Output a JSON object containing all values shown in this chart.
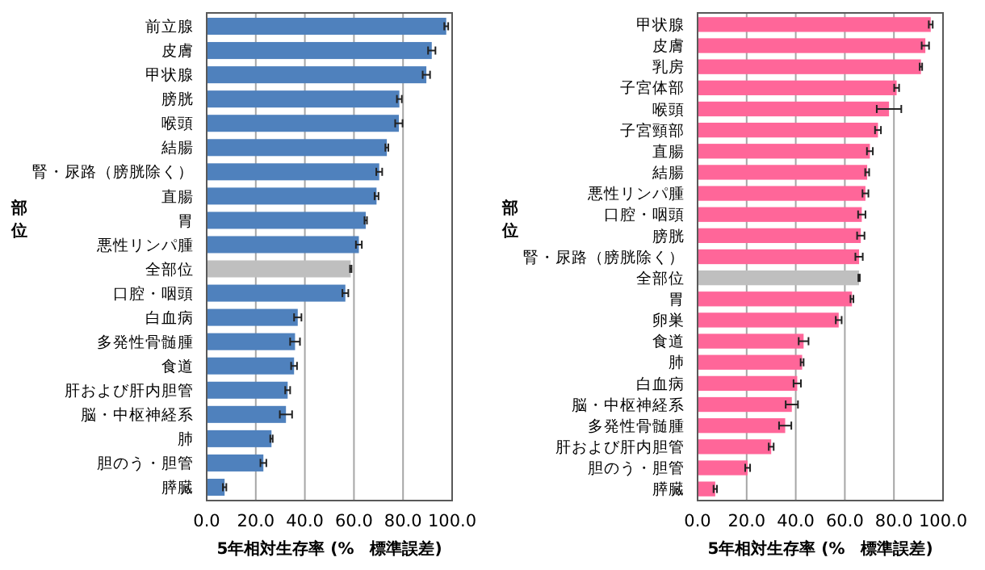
{
  "chart_data": [
    {
      "type": "bar",
      "orientation": "horizontal",
      "xlabel": "5年相対生存率 (%　標準誤差)",
      "ylabel": "部位",
      "categories": [
        "前立腺",
        "皮膚",
        "甲状腺",
        "膀胱",
        "喉頭",
        "結腸",
        "腎・尿路（膀胱除く）",
        "直腸",
        "胃",
        "悪性リンパ腫",
        "全部位",
        "口腔・咽頭",
        "白血病",
        "多発性骨髄腫",
        "食道",
        "肝および肝内胆管",
        "脳・中枢神経系",
        "肺",
        "胆のう・胆管",
        "膵臓"
      ],
      "values": [
        97.6,
        91.7,
        89.5,
        78.5,
        78.3,
        73.4,
        70.3,
        69.2,
        64.8,
        62.0,
        58.7,
        56.5,
        37.1,
        36.0,
        35.6,
        33.0,
        32.3,
        26.4,
        23.1,
        7.3
      ],
      "errors": [
        0.8,
        1.5,
        1.5,
        1,
        1.5,
        0.6,
        1.2,
        0.8,
        0.5,
        1.2,
        0.3,
        1.2,
        1.5,
        2,
        1.2,
        1,
        2.5,
        0.5,
        1.2,
        0.7
      ],
      "colors": [
        "#4f81bd",
        "#4f81bd",
        "#4f81bd",
        "#4f81bd",
        "#4f81bd",
        "#4f81bd",
        "#4f81bd",
        "#4f81bd",
        "#4f81bd",
        "#4f81bd",
        "#bfbfbf",
        "#4f81bd",
        "#4f81bd",
        "#4f81bd",
        "#4f81bd",
        "#4f81bd",
        "#4f81bd",
        "#4f81bd",
        "#4f81bd",
        "#4f81bd"
      ],
      "xlim": [
        0,
        100
      ],
      "xticks": [
        {
          "value": 0,
          "label": "0.0"
        },
        {
          "value": 20,
          "label": "20.0"
        },
        {
          "value": 40,
          "label": "40.0"
        },
        {
          "value": 60,
          "label": "60.0"
        },
        {
          "value": 80,
          "label": "80.0"
        },
        {
          "value": 100,
          "label": "100.0"
        }
      ],
      "grid": "x"
    },
    {
      "type": "bar",
      "orientation": "horizontal",
      "xlabel": "5年相対生存率 (%　標準誤差)",
      "ylabel": "部位",
      "categories": [
        "甲状腺",
        "皮膚",
        "乳房",
        "子宮体部",
        "喉頭",
        "子宮頸部",
        "直腸",
        "結腸",
        "悪性リンパ腫",
        "口腔・咽頭",
        "膀胱",
        "腎・尿路（膀胱除く）",
        "全部位",
        "胃",
        "卵巣",
        "食道",
        "肺",
        "白血病",
        "脳・中枢神経系",
        "多発性骨髄腫",
        "肝および肝内胆管",
        "胆のう・胆管",
        "膵臓"
      ],
      "values": [
        95.0,
        92.8,
        91.0,
        81.1,
        78.0,
        73.5,
        70.2,
        69.1,
        68.4,
        66.9,
        66.5,
        65.8,
        65.8,
        62.9,
        57.5,
        43.2,
        42.6,
        40.6,
        38.4,
        35.7,
        30.0,
        20.4,
        7.2
      ],
      "errors": [
        0.8,
        1.5,
        0.5,
        1,
        5,
        1.2,
        1.2,
        0.8,
        1.2,
        1.5,
        1.5,
        1.5,
        0.3,
        0.6,
        1.2,
        2,
        0.6,
        1.5,
        2.5,
        2.5,
        1,
        1,
        0.7
      ],
      "colors": [
        "#ff6699",
        "#ff6699",
        "#ff6699",
        "#ff6699",
        "#ff6699",
        "#ff6699",
        "#ff6699",
        "#ff6699",
        "#ff6699",
        "#ff6699",
        "#ff6699",
        "#ff6699",
        "#bfbfbf",
        "#ff6699",
        "#ff6699",
        "#ff6699",
        "#ff6699",
        "#ff6699",
        "#ff6699",
        "#ff6699",
        "#ff6699",
        "#ff6699",
        "#ff6699"
      ],
      "xlim": [
        0,
        100
      ],
      "xticks": [
        {
          "value": 0,
          "label": "0.0"
        },
        {
          "value": 20,
          "label": "20.0"
        },
        {
          "value": 40,
          "label": "40.0"
        },
        {
          "value": 60,
          "label": "60.0"
        },
        {
          "value": 80,
          "label": "80.0"
        },
        {
          "value": 100,
          "label": "100.0"
        }
      ],
      "grid": "x"
    }
  ]
}
